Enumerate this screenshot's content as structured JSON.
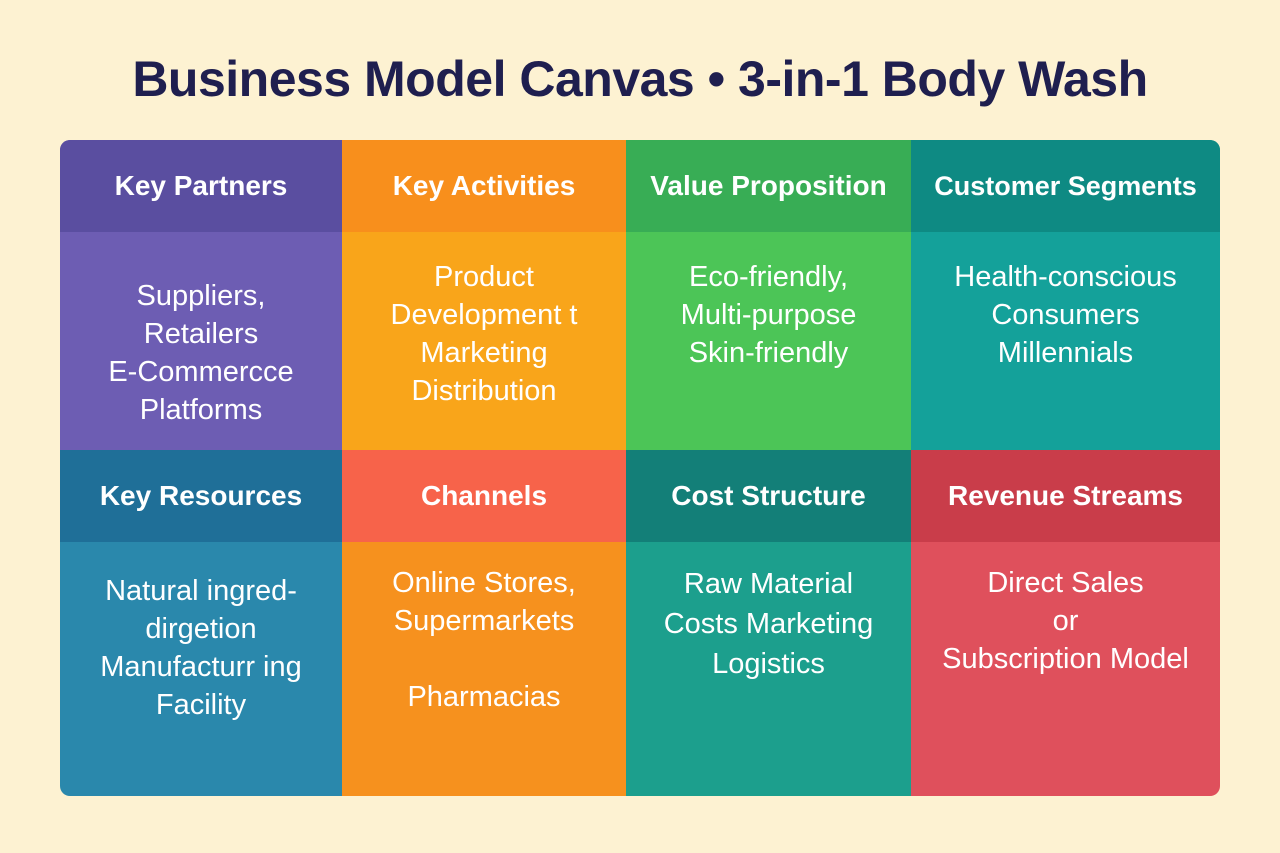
{
  "title": "Business Model Canvas • 3-in-1 Body Wash",
  "colors": {
    "background": "#fdf2d2",
    "title": "#1f1f4f",
    "key_partners": "#6b5bb0",
    "key_activities": "#f8a11d",
    "value_proposition": "#47c456",
    "customer_segments": "#169f96",
    "key_resources": "#2886a9",
    "channels": "#f6901e",
    "cost_structure": "#1b9e8c",
    "revenue_streams": "#dd4e5a"
  },
  "blocks": [
    {
      "id": "key-partners",
      "heading": "Key Partners",
      "lines": [
        "Suppliers,",
        "Retailers",
        "E-Commercce",
        "Platforms"
      ]
    },
    {
      "id": "key-activities",
      "heading": "Key Activities",
      "lines": [
        "Product",
        "Development t",
        "Marketing",
        "Distribution"
      ]
    },
    {
      "id": "value-proposition",
      "heading": "Value Proposition",
      "lines": [
        "Eco-friendly,",
        "Multi-purpose",
        "Skin-friendly"
      ]
    },
    {
      "id": "customer-segments",
      "heading": "Customer Segments",
      "lines": [
        "Health-conscious",
        "Consumers",
        "Millennials"
      ]
    },
    {
      "id": "key-resources",
      "heading": "Key Resources",
      "lines": [
        "Natural ingred-",
        "dirgetion",
        "Manufacturr ing",
        "Facility"
      ]
    },
    {
      "id": "channels",
      "heading": "Channels",
      "lines": [
        "Online Stores,",
        "Supermarkets",
        "",
        "Pharmacias"
      ]
    },
    {
      "id": "cost-structure",
      "heading": "Cost Structure",
      "lines": [
        "Raw Material",
        "Costs  Marketing",
        "Logistics"
      ]
    },
    {
      "id": "revenue-streams",
      "heading": "Revenue Streams",
      "lines": [
        "Direct Sales",
        "or",
        "Subscription Model"
      ]
    }
  ]
}
